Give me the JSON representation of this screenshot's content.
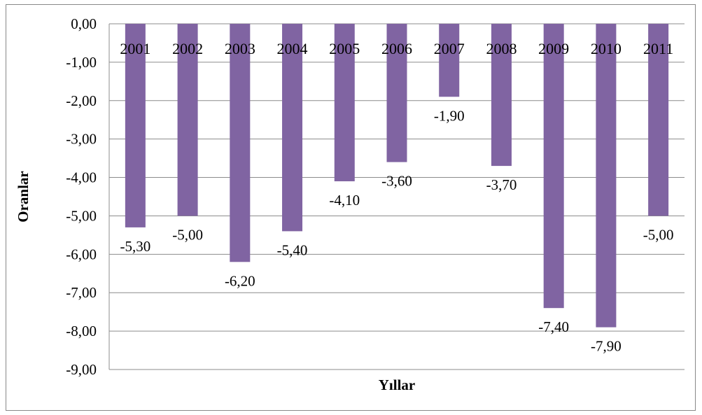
{
  "chart_data": {
    "type": "bar",
    "categories": [
      "2001",
      "2002",
      "2003",
      "2004",
      "2005",
      "2006",
      "2007",
      "2008",
      "2009",
      "2010",
      "2011"
    ],
    "values": [
      -5.3,
      -5.0,
      -6.2,
      -5.4,
      -4.1,
      -3.6,
      -1.9,
      -3.7,
      -7.4,
      -7.9,
      -5.0
    ],
    "data_labels": [
      "-5,30",
      "-5,00",
      "-6,20",
      "-5,40",
      "-4,10",
      "-3,60",
      "-1,90",
      "-3,70",
      "-7,40",
      "-7,90",
      "-5,00"
    ],
    "title": "",
    "xlabel": "Yıllar",
    "ylabel": "Oranlar",
    "ylim": [
      -9,
      0
    ],
    "yticks": [
      0,
      -1,
      -2,
      -3,
      -4,
      -5,
      -6,
      -7,
      -8,
      -9
    ],
    "ytick_labels": [
      "0,00",
      "-1,00",
      "-2,00",
      "-3,00",
      "-4,00",
      "-5,00",
      "-6,00",
      "-7,00",
      "-8,00",
      "-9,00"
    ],
    "grid": true,
    "legend": "none",
    "colors": {
      "bar": "#8064a2",
      "grid": "#8c8c8c"
    }
  }
}
